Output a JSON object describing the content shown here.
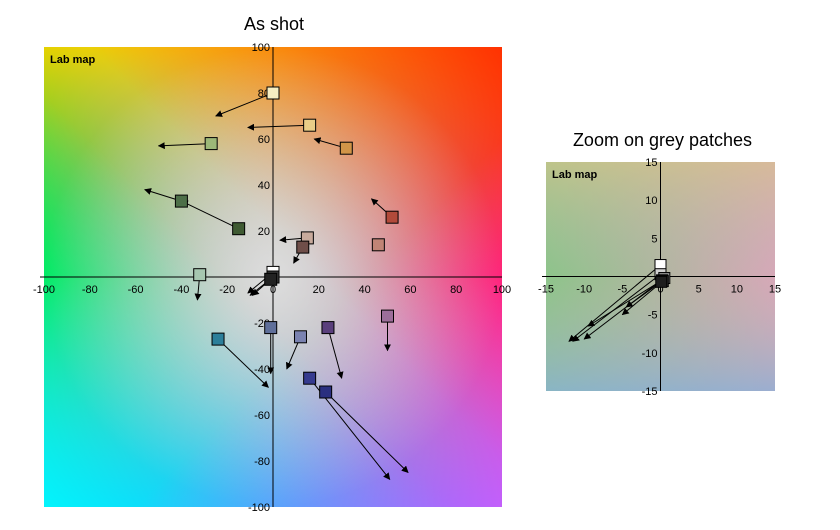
{
  "chart_data": [
    {
      "type": "scatter",
      "title": "As shot",
      "map_label": "Lab map",
      "xlim": [
        -100,
        100
      ],
      "ylim": [
        -100,
        100
      ],
      "x_ticks": [
        -100,
        -80,
        -60,
        -40,
        -20,
        0,
        20,
        40,
        60,
        80,
        100
      ],
      "y_ticks": [
        100,
        80,
        60,
        40,
        20,
        0,
        -20,
        -40,
        -60,
        -80,
        -100
      ],
      "grid": false,
      "background": "CIELab a*-b* color plane",
      "points": [
        {
          "a": 0,
          "b": 80,
          "color": "#f6eec2",
          "to": [
            -25,
            70
          ]
        },
        {
          "a": 16,
          "b": 66,
          "color": "#e9cd87",
          "to": [
            -11,
            65
          ]
        },
        {
          "a": 32,
          "b": 56,
          "color": "#d19548",
          "to": [
            18,
            60
          ]
        },
        {
          "a": -27,
          "b": 58,
          "color": "#9cb878",
          "to": [
            -50,
            57
          ]
        },
        {
          "a": -40,
          "b": 33,
          "color": "#4d6f48",
          "to": [
            -56,
            38
          ]
        },
        {
          "a": -15,
          "b": 21,
          "color": "#3f5a32",
          "to": [
            -40,
            33
          ]
        },
        {
          "a": 52,
          "b": 26,
          "color": "#b24a3a",
          "to": [
            43,
            34
          ]
        },
        {
          "a": 46,
          "b": 14,
          "color": "#c08476",
          "to": null
        },
        {
          "a": 15,
          "b": 17,
          "color": "#c8aa9c",
          "to": [
            3,
            16
          ]
        },
        {
          "a": 13,
          "b": 13,
          "color": "#6f4e49",
          "to": [
            9,
            6
          ]
        },
        {
          "a": -32,
          "b": 1,
          "color": "#a6c7b0",
          "to": [
            -33,
            -10
          ]
        },
        {
          "a": -24,
          "b": -27,
          "color": "#2c7f9a",
          "to": [
            -2,
            -48
          ]
        },
        {
          "a": -1,
          "b": -22,
          "color": "#5f6f9a",
          "to": [
            -1,
            -42
          ]
        },
        {
          "a": 12,
          "b": -26,
          "color": "#7a82b0",
          "to": [
            6,
            -40
          ]
        },
        {
          "a": 24,
          "b": -22,
          "color": "#5a3f7c",
          "to": [
            30,
            -44
          ]
        },
        {
          "a": 50,
          "b": -17,
          "color": "#9c6e9a",
          "to": [
            50,
            -32
          ]
        },
        {
          "a": 16,
          "b": -44,
          "color": "#363b8f",
          "to": [
            51,
            -88
          ]
        },
        {
          "a": 23,
          "b": -50,
          "color": "#2a2f80",
          "to": [
            59,
            -85
          ]
        },
        {
          "a": 0,
          "b": 2,
          "color": "#ffffff",
          "to": [
            -11,
            -7
          ]
        },
        {
          "a": 0,
          "b": 0,
          "color": "#3a3a3a",
          "to": [
            -10,
            -8
          ]
        },
        {
          "a": -1,
          "b": -1,
          "color": "#222222",
          "to": [
            -9,
            -8
          ]
        }
      ]
    },
    {
      "type": "scatter",
      "title": "Zoom on grey patches",
      "map_label": "Lab map",
      "xlim": [
        -15,
        15
      ],
      "ylim": [
        -15,
        15
      ],
      "x_ticks": [
        -15,
        -10,
        -5,
        0,
        5,
        10,
        15
      ],
      "y_ticks": [
        15,
        10,
        5,
        0,
        -5,
        -10,
        -15
      ],
      "grid": false,
      "background": "CIELab a*-b* color plane (zoomed, desaturated)",
      "points": [
        {
          "a": 0,
          "b": 1.5,
          "color": "#ffffff",
          "to": [
            -12,
            -8.5
          ]
        },
        {
          "a": 0,
          "b": 0.3,
          "color": "#cfcfcf",
          "to": [
            -11.5,
            -8.5
          ]
        },
        {
          "a": 0.5,
          "b": -0.2,
          "color": "#8a8a8a",
          "to": [
            -10,
            -8.2
          ]
        },
        {
          "a": 0.2,
          "b": -0.5,
          "color": "#555555",
          "to": [
            -9.5,
            -6.5
          ]
        },
        {
          "a": 0.3,
          "b": -0.6,
          "color": "#333333",
          "to": [
            -5,
            -5
          ]
        },
        {
          "a": 0.1,
          "b": -0.7,
          "color": "#1e1e1e",
          "to": [
            -4.5,
            -4
          ]
        }
      ]
    }
  ]
}
